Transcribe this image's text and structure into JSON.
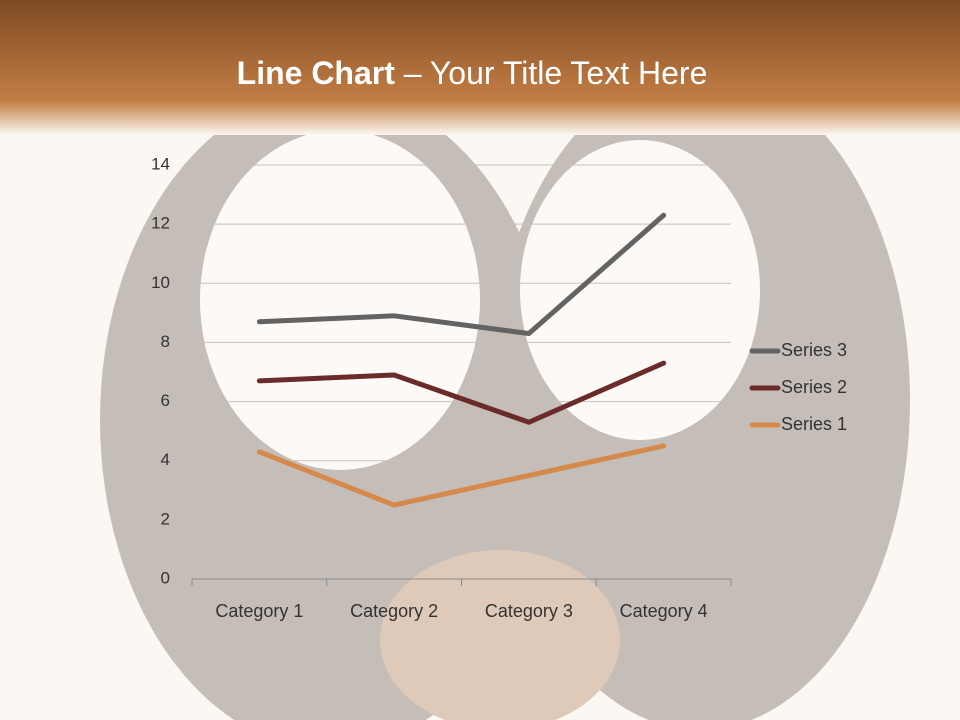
{
  "chart_data": {
    "type": "line",
    "title": [
      "Line Chart",
      " – Your Title Text Here"
    ],
    "categories": [
      "Category 1",
      "Category 2",
      "Category 3",
      "Category 4"
    ],
    "series": [
      {
        "name": "Series 1",
        "color": "#d58a4c",
        "values": [
          4.3,
          2.5,
          3.5,
          4.5
        ]
      },
      {
        "name": "Series 2",
        "color": "#6b2b2b",
        "values": [
          6.7,
          6.9,
          5.3,
          7.3
        ]
      },
      {
        "name": "Series 3",
        "color": "#636363",
        "values": [
          8.7,
          8.9,
          8.3,
          12.3
        ]
      }
    ],
    "ylim": [
      0,
      14
    ],
    "yticks": [
      0,
      2,
      4,
      6,
      8,
      10,
      12,
      14
    ],
    "grid": true,
    "legend": "right"
  }
}
